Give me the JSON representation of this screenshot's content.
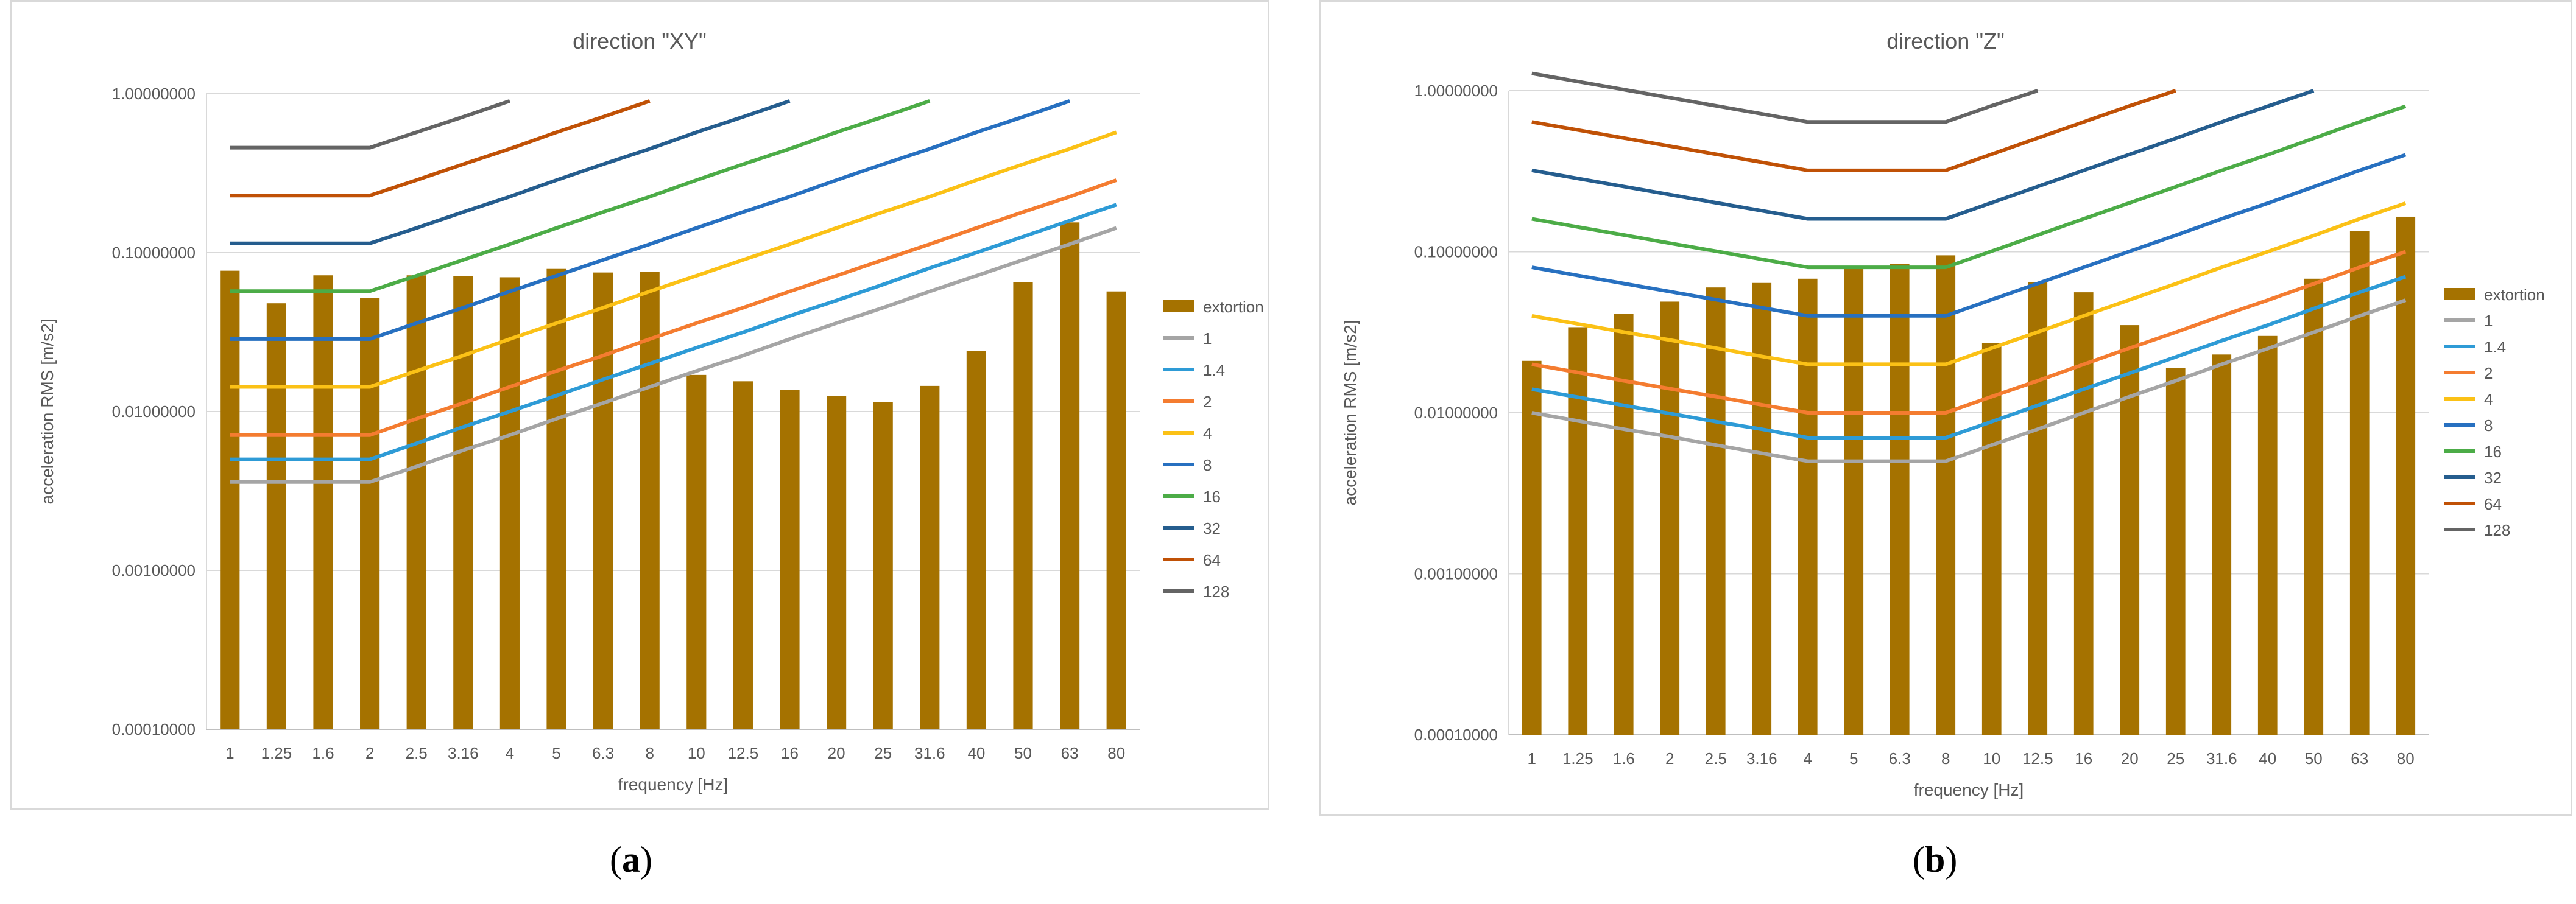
{
  "figure": {
    "panels": [
      {
        "label_open": "(",
        "label_letter": "a",
        "label_close": ")"
      },
      {
        "label_open": "(",
        "label_letter": "b",
        "label_close": ")"
      }
    ]
  },
  "colors": {
    "extortion": "#a57200",
    "1": "#a5a5a5",
    "1.4": "#2e9bd6",
    "2": "#f47c30",
    "4": "#fbc116",
    "8": "#2770c0",
    "16": "#4cac47",
    "32": "#255d8e",
    "64": "#c05106",
    "128": "#646464"
  },
  "chart_data": [
    {
      "type": "bar+line",
      "title": "direction \"XY\"",
      "xlabel": "frequency [Hz]",
      "ylabel": "acceleration RMS [m/s2]",
      "yscale": "log",
      "ylim": [
        0.0001,
        1.0
      ],
      "yticks": [
        0.0001,
        0.001,
        0.01,
        0.1,
        1.0
      ],
      "ytick_labels": [
        "0.00010000",
        "0.00100000",
        "0.01000000",
        "0.10000000",
        "1.00000000"
      ],
      "legend_position": "right",
      "categories": [
        "1",
        "1.25",
        "1.6",
        "2",
        "2.5",
        "3.16",
        "4",
        "5",
        "6.3",
        "8",
        "10",
        "12.5",
        "16",
        "20",
        "25",
        "31.6",
        "40",
        "50",
        "63",
        "80"
      ],
      "bar_series": {
        "name": "extortion",
        "values": [
          0.077,
          0.048,
          0.072,
          0.052,
          0.072,
          0.071,
          0.07,
          0.079,
          0.075,
          0.076,
          0.017,
          0.0155,
          0.0137,
          0.0125,
          0.0115,
          0.0145,
          0.024,
          0.065,
          0.155,
          0.057
        ]
      },
      "line_series": [
        {
          "name": "1",
          "values": [
            0.0036,
            0.0036,
            0.0036,
            0.0036,
            0.0045,
            0.0057,
            0.0071,
            0.009,
            0.0113,
            0.0143,
            0.018,
            0.0225,
            0.0286,
            0.036,
            0.045,
            0.057,
            0.0715,
            0.09,
            0.113,
            0.143
          ]
        },
        {
          "name": "1.4",
          "values": [
            0.005,
            0.005,
            0.005,
            0.005,
            0.0063,
            0.008,
            0.01,
            0.0126,
            0.0159,
            0.02,
            0.0252,
            0.0315,
            0.04,
            0.05,
            0.063,
            0.08,
            0.1,
            0.126,
            0.159,
            0.2
          ]
        },
        {
          "name": "2",
          "values": [
            0.0071,
            0.0071,
            0.0071,
            0.0071,
            0.009,
            0.0113,
            0.0143,
            0.018,
            0.0225,
            0.0286,
            0.036,
            0.045,
            0.057,
            0.0715,
            0.09,
            0.113,
            0.143,
            0.18,
            0.225,
            0.286
          ]
        },
        {
          "name": "4",
          "values": [
            0.0143,
            0.0143,
            0.0143,
            0.0143,
            0.018,
            0.0225,
            0.0286,
            0.036,
            0.045,
            0.057,
            0.0715,
            0.09,
            0.113,
            0.143,
            0.18,
            0.225,
            0.286,
            0.36,
            0.45,
            0.572
          ]
        },
        {
          "name": "8",
          "values": [
            0.0286,
            0.0286,
            0.0286,
            0.0286,
            0.036,
            0.045,
            0.057,
            0.0715,
            0.09,
            0.113,
            0.143,
            0.18,
            0.225,
            0.286,
            0.36,
            0.45,
            0.572,
            0.715,
            0.9,
            null
          ]
        },
        {
          "name": "16",
          "values": [
            0.0572,
            0.0572,
            0.0572,
            0.0572,
            0.0715,
            0.09,
            0.113,
            0.143,
            0.18,
            0.225,
            0.286,
            0.36,
            0.45,
            0.572,
            0.715,
            0.9,
            null,
            null,
            null,
            null
          ]
        },
        {
          "name": "32",
          "values": [
            0.1144,
            0.1144,
            0.1144,
            0.1144,
            0.143,
            0.18,
            0.225,
            0.286,
            0.36,
            0.45,
            0.572,
            0.715,
            0.9,
            null,
            null,
            null,
            null,
            null,
            null,
            null
          ]
        },
        {
          "name": "64",
          "values": [
            0.2288,
            0.2288,
            0.2288,
            0.2288,
            0.286,
            0.36,
            0.45,
            0.572,
            0.715,
            0.9,
            null,
            null,
            null,
            null,
            null,
            null,
            null,
            null,
            null,
            null
          ]
        },
        {
          "name": "128",
          "values": [
            0.4576,
            0.4576,
            0.4576,
            0.4576,
            0.572,
            0.715,
            0.9,
            null,
            null,
            null,
            null,
            null,
            null,
            null,
            null,
            null,
            null,
            null,
            null,
            null
          ]
        }
      ],
      "legend": [
        "extortion",
        "1",
        "1.4",
        "2",
        "4",
        "8",
        "16",
        "32",
        "64",
        "128"
      ]
    },
    {
      "type": "bar+line",
      "title": "direction \"Z\"",
      "xlabel": "frequency [Hz]",
      "ylabel": "acceleration RMS [m/s2]",
      "yscale": "log",
      "ylim": [
        0.0001,
        1.0
      ],
      "yticks": [
        0.0001,
        0.001,
        0.01,
        0.1,
        1.0
      ],
      "ytick_labels": [
        "0.00010000",
        "0.00100000",
        "0.01000000",
        "0.10000000",
        "1.00000000"
      ],
      "legend_position": "right",
      "categories": [
        "1",
        "1.25",
        "1.6",
        "2",
        "2.5",
        "3.16",
        "4",
        "5",
        "6.3",
        "8",
        "10",
        "12.5",
        "16",
        "20",
        "25",
        "31.6",
        "40",
        "50",
        "63",
        "80"
      ],
      "bar_series": {
        "name": "extortion",
        "values": [
          0.021,
          0.034,
          0.041,
          0.049,
          0.06,
          0.064,
          0.068,
          0.08,
          0.084,
          0.095,
          0.027,
          0.065,
          0.056,
          0.035,
          0.019,
          0.023,
          0.03,
          0.068,
          0.135,
          0.165
        ]
      },
      "line_series": [
        {
          "name": "1",
          "values": [
            0.01,
            0.0089,
            0.0079,
            0.0071,
            0.0063,
            0.0056,
            0.005,
            0.005,
            0.005,
            0.005,
            0.0063,
            0.0079,
            0.01,
            0.0126,
            0.0158,
            0.02,
            0.025,
            0.0316,
            0.04,
            0.05
          ]
        },
        {
          "name": "1.4",
          "values": [
            0.014,
            0.0125,
            0.0111,
            0.0099,
            0.0088,
            0.0079,
            0.007,
            0.007,
            0.007,
            0.007,
            0.0088,
            0.0111,
            0.014,
            0.0176,
            0.0222,
            0.028,
            0.035,
            0.0443,
            0.056,
            0.07
          ]
        },
        {
          "name": "2",
          "values": [
            0.02,
            0.0178,
            0.0158,
            0.0141,
            0.0126,
            0.0112,
            0.01,
            0.01,
            0.01,
            0.01,
            0.0126,
            0.0158,
            0.02,
            0.0252,
            0.0316,
            0.04,
            0.05,
            0.0632,
            0.08,
            0.1
          ]
        },
        {
          "name": "4",
          "values": [
            0.04,
            0.0356,
            0.0317,
            0.0283,
            0.0252,
            0.0224,
            0.02,
            0.02,
            0.02,
            0.02,
            0.0252,
            0.0317,
            0.04,
            0.0503,
            0.0632,
            0.08,
            0.1,
            0.126,
            0.16,
            0.2
          ]
        },
        {
          "name": "8",
          "values": [
            0.08,
            0.0713,
            0.0635,
            0.0566,
            0.0504,
            0.0449,
            0.04,
            0.04,
            0.04,
            0.04,
            0.0504,
            0.0635,
            0.08,
            0.1006,
            0.1265,
            0.16,
            0.2,
            0.253,
            0.32,
            0.4
          ]
        },
        {
          "name": "16",
          "values": [
            0.16,
            0.1425,
            0.127,
            0.1131,
            0.1008,
            0.0898,
            0.08,
            0.08,
            0.08,
            0.08,
            0.1008,
            0.127,
            0.16,
            0.2012,
            0.253,
            0.32,
            0.4,
            0.506,
            0.64,
            0.8
          ]
        },
        {
          "name": "32",
          "values": [
            0.32,
            0.285,
            0.254,
            0.2263,
            0.2016,
            0.1796,
            0.16,
            0.16,
            0.16,
            0.16,
            0.2016,
            0.254,
            0.32,
            0.4024,
            0.506,
            0.64,
            0.8,
            1.0,
            null,
            null
          ]
        },
        {
          "name": "64",
          "values": [
            0.64,
            0.5701,
            0.5079,
            0.4525,
            0.4032,
            0.3592,
            0.32,
            0.32,
            0.32,
            0.32,
            0.4032,
            0.5079,
            0.64,
            0.8048,
            1.0,
            null,
            null,
            null,
            null,
            null
          ]
        },
        {
          "name": "128",
          "values": [
            1.28,
            1.14,
            1.016,
            0.905,
            0.806,
            0.718,
            0.64,
            0.64,
            0.64,
            0.64,
            0.806,
            1.0,
            null,
            null,
            null,
            null,
            null,
            null,
            null,
            null
          ]
        }
      ],
      "legend": [
        "extortion",
        "1",
        "1.4",
        "2",
        "4",
        "8",
        "16",
        "32",
        "64",
        "128"
      ]
    }
  ]
}
